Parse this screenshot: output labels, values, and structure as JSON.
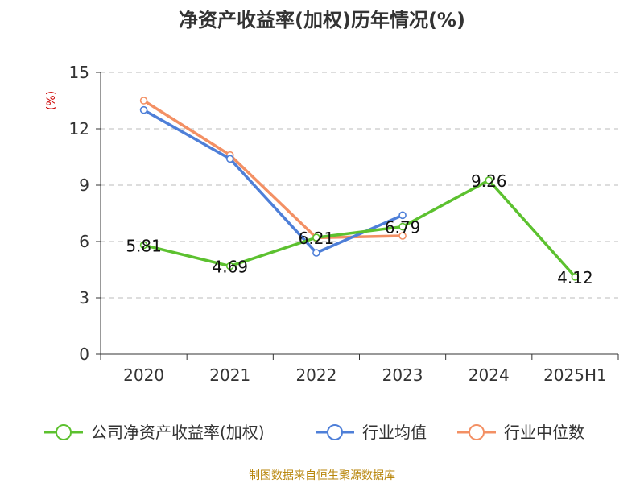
{
  "chart_data": {
    "type": "line",
    "title": "净资产收益率(加权)历年情况(%)",
    "ylabel": "(%)",
    "categories": [
      "2020",
      "2021",
      "2022",
      "2023",
      "2024",
      "2025H1"
    ],
    "ylim": [
      0,
      15
    ],
    "yticks": [
      0,
      3,
      6,
      9,
      12,
      15
    ],
    "grid": true,
    "legend_position": "bottom",
    "series": [
      {
        "name": "公司净资产收益率(加权)",
        "color": "#5cc12f",
        "values": [
          5.81,
          4.69,
          6.21,
          6.79,
          9.26,
          4.12
        ],
        "labels": [
          "5.81",
          "4.69",
          "6.21",
          "6.79",
          "9.26",
          "4.12"
        ]
      },
      {
        "name": "行业均值",
        "color": "#4e7fd8",
        "values": [
          13.0,
          10.4,
          5.4,
          7.4,
          null,
          null
        ]
      },
      {
        "name": "行业中位数",
        "color": "#f39064",
        "values": [
          13.5,
          10.6,
          6.2,
          6.3,
          null,
          null
        ]
      }
    ],
    "source": "制图数据来自恒生聚源数据库"
  }
}
